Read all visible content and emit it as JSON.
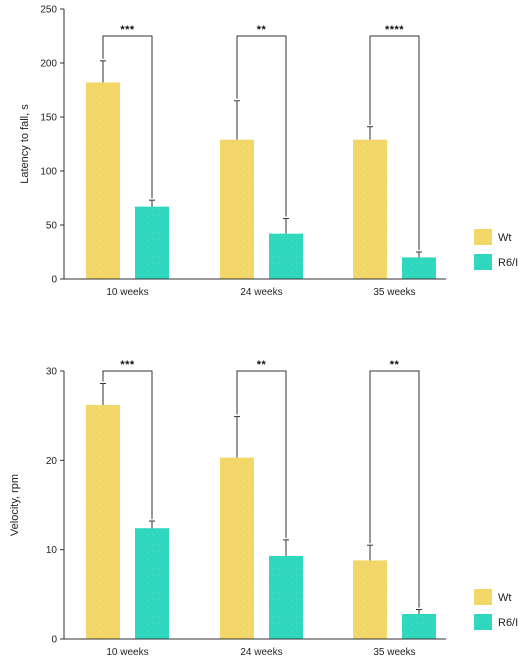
{
  "colors": {
    "wt": "#f3d768",
    "r6": "#2fd8bf",
    "axis": "#333333",
    "bracket": "#333333"
  },
  "chart_data": [
    {
      "type": "bar",
      "ylabel": "Latency to fall, s",
      "ylim": [
        0,
        250
      ],
      "yticks": [
        0,
        50,
        100,
        150,
        200,
        250
      ],
      "categories": [
        "10 weeks",
        "24 weeks",
        "35 weeks"
      ],
      "series": [
        {
          "name": "Wt",
          "values": [
            182,
            129,
            129
          ],
          "errors": [
            20,
            36,
            12
          ]
        },
        {
          "name": "R6/I",
          "values": [
            67,
            42,
            20
          ],
          "errors": [
            6,
            14,
            5
          ]
        }
      ],
      "significance": [
        "***",
        "**",
        "****"
      ],
      "legend": "right"
    },
    {
      "type": "bar",
      "ylabel": "Velocity, rpm",
      "ylim": [
        0,
        30
      ],
      "yticks": [
        0,
        10,
        20,
        30
      ],
      "categories": [
        "10 weeks",
        "24 weeks",
        "35 weeks"
      ],
      "series": [
        {
          "name": "Wt",
          "values": [
            26.2,
            20.3,
            8.8
          ],
          "errors": [
            2.4,
            4.6,
            1.7
          ]
        },
        {
          "name": "R6/I",
          "values": [
            12.4,
            9.3,
            2.8
          ],
          "errors": [
            0.8,
            1.8,
            0.5
          ]
        }
      ],
      "significance": [
        "***",
        "**",
        "**"
      ],
      "legend": "right"
    }
  ]
}
